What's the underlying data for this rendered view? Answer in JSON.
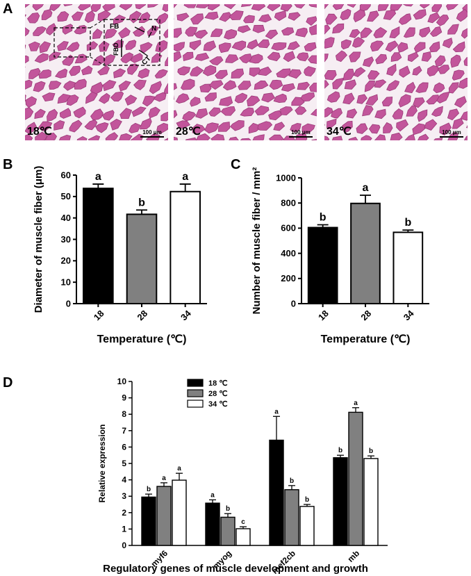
{
  "panel_a": {
    "label": "A",
    "images": [
      {
        "temp": "18℃",
        "scale": "100 μm",
        "annotations": [
          "FB",
          "N",
          "FBD",
          "CT"
        ]
      },
      {
        "temp": "28℃",
        "scale": "100 μm"
      },
      {
        "temp": "34℃",
        "scale": "100 μm"
      }
    ],
    "colors": {
      "tissue": "#c2559b",
      "background": "#f6eef3",
      "fiber_border": "#9c3a78"
    }
  },
  "chart_data": [
    {
      "id": "B",
      "type": "bar",
      "categories": [
        "18",
        "28",
        "34"
      ],
      "values": [
        53.8,
        41.7,
        52.3
      ],
      "errors": [
        2.0,
        2.0,
        3.5
      ],
      "letters": [
        "a",
        "b",
        "a"
      ],
      "colors": [
        "#000000",
        "#808080",
        "#ffffff"
      ],
      "title": "",
      "xlabel": "Temperature (℃)",
      "ylabel": "Diameter of muscle fiber (μm)",
      "ylim": [
        0,
        60
      ],
      "yticks": [
        0,
        10,
        20,
        30,
        40,
        50,
        60
      ],
      "grid": false
    },
    {
      "id": "C",
      "type": "bar",
      "categories": [
        "18",
        "28",
        "34"
      ],
      "values": [
        605,
        797,
        567
      ],
      "errors": [
        22,
        65,
        18
      ],
      "letters": [
        "b",
        "a",
        "b"
      ],
      "colors": [
        "#000000",
        "#808080",
        "#ffffff"
      ],
      "title": "",
      "xlabel": "Temperature (℃)",
      "ylabel": "Number of muscle fiber / mm²",
      "ylim": [
        0,
        1000
      ],
      "yticks": [
        0,
        200,
        400,
        600,
        800,
        1000
      ],
      "grid": false
    },
    {
      "id": "D",
      "type": "bar",
      "categories": [
        "myf6",
        "myog",
        "mef2cb",
        "mb"
      ],
      "series": [
        {
          "name": "18 ℃",
          "color": "#000000",
          "values": [
            2.95,
            2.58,
            6.42,
            5.35
          ],
          "errors": [
            0.18,
            0.2,
            1.45,
            0.15
          ],
          "letters": [
            "b",
            "a",
            "a",
            "b"
          ]
        },
        {
          "name": "28 ℃",
          "color": "#808080",
          "values": [
            3.6,
            1.72,
            3.4,
            8.12
          ],
          "errors": [
            0.22,
            0.22,
            0.25,
            0.28
          ],
          "letters": [
            "a",
            "b",
            "b",
            "a"
          ]
        },
        {
          "name": "34 ℃",
          "color": "#ffffff",
          "values": [
            3.98,
            1.02,
            2.38,
            5.3
          ],
          "errors": [
            0.42,
            0.12,
            0.12,
            0.16
          ],
          "letters": [
            "a",
            "c",
            "b",
            "b"
          ]
        }
      ],
      "title": "",
      "xlabel": "Regulatory genes of muscle development and growth",
      "ylabel": "Relative expression",
      "ylim": [
        0,
        10
      ],
      "yticks": [
        0,
        1,
        2,
        3,
        4,
        5,
        6,
        7,
        8,
        9,
        10
      ],
      "legend": "top-left",
      "grid": false
    }
  ]
}
